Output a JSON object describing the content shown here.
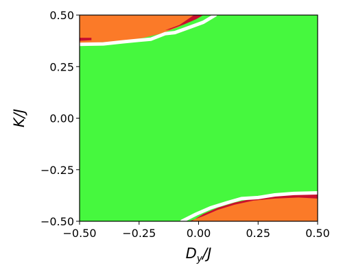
{
  "chart_data": {
    "type": "heatmap",
    "title": "",
    "xlabel": "D_y/J",
    "ylabel": "K/J",
    "xlim": [
      -0.5,
      0.5
    ],
    "ylim": [
      -0.5,
      0.5
    ],
    "x_ticks": [
      "−0.50",
      "−0.25",
      "0.00",
      "0.25",
      "0.50"
    ],
    "x_tick_values": [
      -0.5,
      -0.25,
      0.0,
      0.25,
      0.5
    ],
    "y_ticks": [
      "−0.50",
      "−0.25",
      "0.00",
      "0.25",
      "0.50"
    ],
    "y_tick_values": [
      -0.5,
      -0.25,
      0.0,
      0.25,
      0.5
    ],
    "grid": false,
    "colors": {
      "background_phase": "#46f83e",
      "orange_phase": "#fb7a28",
      "red_phase": "#c8102e",
      "boundary": "#ffffff"
    },
    "regions": [
      {
        "name": "orange-top-left",
        "color": "orange_phase",
        "points": [
          [
            -0.5,
            0.5
          ],
          [
            0.0,
            0.5
          ],
          [
            -0.03,
            0.472
          ],
          [
            -0.09,
            0.44
          ],
          [
            -0.16,
            0.41
          ],
          [
            -0.23,
            0.39
          ],
          [
            -0.32,
            0.375
          ],
          [
            -0.42,
            0.367
          ],
          [
            -0.5,
            0.365
          ]
        ]
      },
      {
        "name": "red-top-band",
        "color": "red_phase",
        "points": [
          [
            -0.02,
            0.5
          ],
          [
            0.02,
            0.5
          ],
          [
            -0.01,
            0.48
          ],
          [
            -0.06,
            0.455
          ],
          [
            -0.12,
            0.43
          ],
          [
            -0.14,
            0.427
          ],
          [
            -0.08,
            0.452
          ]
        ]
      },
      {
        "name": "red-top-left-edge",
        "color": "red_phase",
        "points": [
          [
            -0.5,
            0.39
          ],
          [
            -0.45,
            0.39
          ],
          [
            -0.45,
            0.378
          ],
          [
            -0.5,
            0.375
          ]
        ]
      },
      {
        "name": "orange-bottom-right",
        "color": "orange_phase",
        "points": [
          [
            0.5,
            -0.5
          ],
          [
            -0.03,
            -0.5
          ],
          [
            0.02,
            -0.465
          ],
          [
            0.08,
            -0.435
          ],
          [
            0.15,
            -0.41
          ],
          [
            0.23,
            -0.39
          ],
          [
            0.32,
            -0.378
          ],
          [
            0.42,
            -0.37
          ],
          [
            0.5,
            -0.368
          ]
        ]
      },
      {
        "name": "red-bottom-band",
        "color": "red_phase",
        "points": [
          [
            -0.08,
            -0.5
          ],
          [
            -0.03,
            -0.5
          ],
          [
            0.02,
            -0.465
          ],
          [
            0.08,
            -0.435
          ],
          [
            0.15,
            -0.41
          ],
          [
            0.23,
            -0.39
          ],
          [
            0.32,
            -0.378
          ],
          [
            0.42,
            -0.37
          ],
          [
            0.5,
            -0.368
          ],
          [
            0.5,
            -0.39
          ],
          [
            0.42,
            -0.385
          ],
          [
            0.32,
            -0.39
          ],
          [
            0.23,
            -0.4
          ],
          [
            0.15,
            -0.42
          ],
          [
            0.08,
            -0.445
          ],
          [
            0.02,
            -0.475
          ],
          [
            -0.04,
            -0.5
          ]
        ]
      }
    ],
    "boundaries": [
      {
        "name": "upper-boundary",
        "points": [
          [
            0.07,
            0.5
          ],
          [
            0.02,
            0.465
          ],
          [
            -0.04,
            0.44
          ],
          [
            -0.1,
            0.415
          ],
          [
            -0.14,
            0.41
          ],
          [
            -0.2,
            0.383
          ],
          [
            -0.25,
            0.378
          ],
          [
            -0.32,
            0.37
          ],
          [
            -0.4,
            0.36
          ],
          [
            -0.5,
            0.358
          ]
        ]
      },
      {
        "name": "lower-boundary",
        "points": [
          [
            -0.07,
            -0.5
          ],
          [
            -0.01,
            -0.465
          ],
          [
            0.05,
            -0.435
          ],
          [
            0.12,
            -0.41
          ],
          [
            0.18,
            -0.39
          ],
          [
            0.25,
            -0.385
          ],
          [
            0.32,
            -0.372
          ],
          [
            0.4,
            -0.365
          ],
          [
            0.5,
            -0.362
          ]
        ]
      }
    ]
  }
}
